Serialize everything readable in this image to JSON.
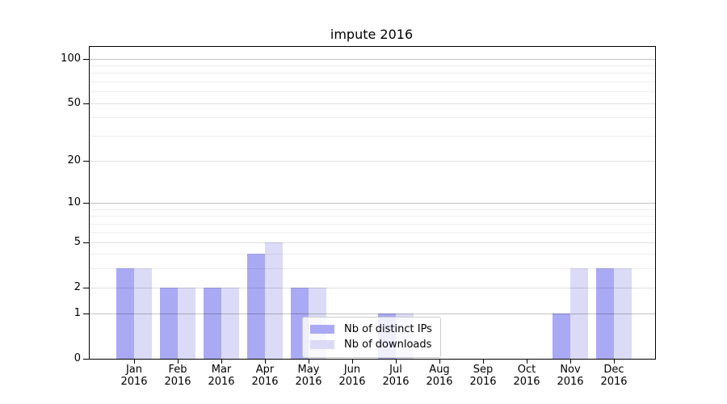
{
  "chart_data": {
    "type": "bar",
    "title": "impute 2016",
    "categories": [
      "Jan",
      "Feb",
      "Mar",
      "Apr",
      "May",
      "Jun",
      "Jul",
      "Aug",
      "Sep",
      "Oct",
      "Nov",
      "Dec"
    ],
    "category_year": "2016",
    "series": [
      {
        "name": "Nb of distinct IPs",
        "color": "#a9a9f4",
        "values": [
          3,
          2,
          2,
          4,
          2,
          0,
          1,
          0,
          0,
          0,
          1,
          3
        ]
      },
      {
        "name": "Nb of downloads",
        "color": "#dbdbf8",
        "values": [
          3,
          2,
          2,
          5,
          2,
          0,
          1,
          0,
          0,
          0,
          3,
          3
        ]
      }
    ],
    "xlabel": "",
    "ylabel": "",
    "y_axis": {
      "scale": "log10(value+1)",
      "major_tick_labels": [
        0,
        1,
        2,
        5,
        10,
        20,
        50,
        100
      ],
      "power_gridlines": [
        1,
        10,
        100
      ],
      "mid_gridlines": [
        2,
        5,
        20,
        50
      ],
      "minor_gridlines": [
        3,
        4,
        6,
        7,
        8,
        9,
        30,
        40,
        60,
        70,
        80,
        90
      ],
      "ylim": [
        0,
        120
      ]
    },
    "grid": true,
    "legend": {
      "position": "lower center",
      "entries": [
        "Nb of distinct IPs",
        "Nb of downloads"
      ]
    }
  }
}
